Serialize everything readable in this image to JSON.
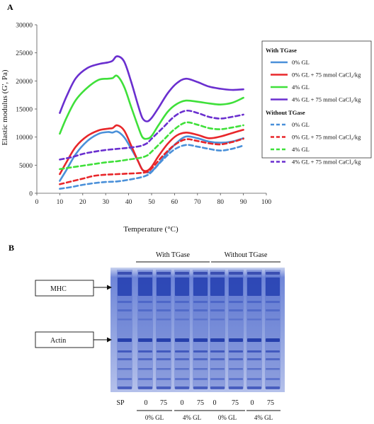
{
  "panel_a_label": "A",
  "panel_b_label": "B",
  "chart_data": {
    "type": "line",
    "xlabel": "Temperature (°C)",
    "ylabel": "Elastic modulus (G', Pa)",
    "xlim": [
      0,
      100
    ],
    "ylim": [
      0,
      30000
    ],
    "x_ticks": [
      "0",
      "10",
      "20",
      "30",
      "40",
      "50",
      "60",
      "70",
      "80",
      "90",
      "100"
    ],
    "y_ticks": [
      "0",
      "5000",
      "10000",
      "15000",
      "20000",
      "25000",
      "30000"
    ],
    "grid": false,
    "legend_position": "right",
    "legend_groups": [
      "With TGase",
      "Without TGase"
    ],
    "series": [
      {
        "name": "0% GL",
        "group": "With TGase",
        "color": "#4a90d9",
        "dash": "solid",
        "points": [
          [
            10,
            2200
          ],
          [
            13,
            4200
          ],
          [
            17,
            7000
          ],
          [
            22,
            9300
          ],
          [
            27,
            10600
          ],
          [
            31,
            10900
          ],
          [
            33,
            10800
          ],
          [
            35,
            11000
          ],
          [
            38,
            10000
          ],
          [
            41,
            8000
          ],
          [
            44,
            5800
          ],
          [
            46,
            4200
          ],
          [
            48,
            3700
          ],
          [
            50,
            3900
          ],
          [
            53,
            5200
          ],
          [
            57,
            7300
          ],
          [
            61,
            9000
          ],
          [
            65,
            10100
          ],
          [
            70,
            9800
          ],
          [
            75,
            9200
          ],
          [
            80,
            9000
          ],
          [
            85,
            9200
          ],
          [
            90,
            9800
          ]
        ]
      },
      {
        "name": "0% GL + 75 mmol CaCl₂/kg",
        "group": "With TGase",
        "color": "#e8262a",
        "dash": "solid",
        "points": [
          [
            10,
            3400
          ],
          [
            13,
            5600
          ],
          [
            17,
            8300
          ],
          [
            22,
            10200
          ],
          [
            27,
            11200
          ],
          [
            31,
            11500
          ],
          [
            33,
            11600
          ],
          [
            35,
            12100
          ],
          [
            38,
            11200
          ],
          [
            41,
            8600
          ],
          [
            44,
            5800
          ],
          [
            46,
            4200
          ],
          [
            48,
            4000
          ],
          [
            50,
            4700
          ],
          [
            53,
            6600
          ],
          [
            57,
            8800
          ],
          [
            61,
            10300
          ],
          [
            65,
            10800
          ],
          [
            70,
            10400
          ],
          [
            75,
            9800
          ],
          [
            80,
            10100
          ],
          [
            85,
            10700
          ],
          [
            90,
            11300
          ]
        ]
      },
      {
        "name": "4% GL",
        "group": "With TGase",
        "color": "#3fe03a",
        "dash": "solid",
        "points": [
          [
            10,
            10600
          ],
          [
            13,
            13500
          ],
          [
            17,
            16600
          ],
          [
            22,
            18800
          ],
          [
            27,
            20200
          ],
          [
            31,
            20400
          ],
          [
            33,
            20500
          ],
          [
            35,
            20900
          ],
          [
            38,
            19000
          ],
          [
            41,
            15500
          ],
          [
            44,
            12000
          ],
          [
            46,
            10000
          ],
          [
            48,
            9700
          ],
          [
            50,
            10200
          ],
          [
            53,
            12100
          ],
          [
            57,
            14500
          ],
          [
            61,
            15900
          ],
          [
            65,
            16500
          ],
          [
            70,
            16300
          ],
          [
            75,
            16000
          ],
          [
            80,
            15800
          ],
          [
            85,
            16100
          ],
          [
            90,
            17000
          ]
        ]
      },
      {
        "name": "4% GL + 75 mmol CaCl₂/kg",
        "group": "With TGase",
        "color": "#6a2fcf",
        "dash": "solid",
        "points": [
          [
            10,
            14300
          ],
          [
            13,
            17300
          ],
          [
            17,
            20500
          ],
          [
            22,
            22300
          ],
          [
            27,
            23000
          ],
          [
            31,
            23300
          ],
          [
            33,
            23600
          ],
          [
            35,
            24400
          ],
          [
            38,
            23500
          ],
          [
            41,
            20000
          ],
          [
            44,
            15800
          ],
          [
            46,
            13400
          ],
          [
            48,
            12800
          ],
          [
            50,
            13400
          ],
          [
            53,
            15200
          ],
          [
            57,
            17800
          ],
          [
            61,
            19600
          ],
          [
            65,
            20400
          ],
          [
            70,
            19800
          ],
          [
            75,
            19000
          ],
          [
            80,
            18600
          ],
          [
            85,
            18400
          ],
          [
            90,
            18500
          ]
        ]
      },
      {
        "name": "0% GL",
        "group": "Without TGase",
        "color": "#4a90d9",
        "dash": "dashed",
        "points": [
          [
            10,
            800
          ],
          [
            15,
            1100
          ],
          [
            20,
            1500
          ],
          [
            25,
            1800
          ],
          [
            30,
            2000
          ],
          [
            35,
            2100
          ],
          [
            40,
            2400
          ],
          [
            45,
            2800
          ],
          [
            48,
            3200
          ],
          [
            50,
            3800
          ],
          [
            55,
            6000
          ],
          [
            60,
            7800
          ],
          [
            65,
            8600
          ],
          [
            70,
            8300
          ],
          [
            75,
            7900
          ],
          [
            80,
            7600
          ],
          [
            85,
            7900
          ],
          [
            90,
            8500
          ]
        ]
      },
      {
        "name": "0% GL + 75 mmol CaCl₂/kg",
        "group": "Without TGase",
        "color": "#e8262a",
        "dash": "dashed",
        "points": [
          [
            10,
            1600
          ],
          [
            15,
            2100
          ],
          [
            20,
            2600
          ],
          [
            25,
            3100
          ],
          [
            30,
            3300
          ],
          [
            35,
            3400
          ],
          [
            40,
            3500
          ],
          [
            45,
            3600
          ],
          [
            48,
            3800
          ],
          [
            50,
            4400
          ],
          [
            55,
            6700
          ],
          [
            60,
            8600
          ],
          [
            65,
            9600
          ],
          [
            70,
            9300
          ],
          [
            75,
            8900
          ],
          [
            80,
            8700
          ],
          [
            85,
            9100
          ],
          [
            90,
            9700
          ]
        ]
      },
      {
        "name": "4% GL",
        "group": "Without TGase",
        "color": "#3fe03a",
        "dash": "dashed",
        "points": [
          [
            10,
            4300
          ],
          [
            15,
            4600
          ],
          [
            20,
            4900
          ],
          [
            25,
            5200
          ],
          [
            30,
            5500
          ],
          [
            35,
            5700
          ],
          [
            40,
            6000
          ],
          [
            45,
            6300
          ],
          [
            48,
            6700
          ],
          [
            50,
            7400
          ],
          [
            55,
            9400
          ],
          [
            60,
            11400
          ],
          [
            65,
            12600
          ],
          [
            70,
            12200
          ],
          [
            75,
            11600
          ],
          [
            80,
            11400
          ],
          [
            85,
            11700
          ],
          [
            90,
            12100
          ]
        ]
      },
      {
        "name": "4% GL + 75 mmol CaCl₂/kg",
        "group": "Without TGase",
        "color": "#6a2fcf",
        "dash": "dashed",
        "points": [
          [
            10,
            6000
          ],
          [
            15,
            6400
          ],
          [
            20,
            7000
          ],
          [
            25,
            7400
          ],
          [
            30,
            7700
          ],
          [
            35,
            7900
          ],
          [
            40,
            8100
          ],
          [
            45,
            8400
          ],
          [
            48,
            8900
          ],
          [
            50,
            9700
          ],
          [
            55,
            11700
          ],
          [
            60,
            13700
          ],
          [
            65,
            14700
          ],
          [
            70,
            14300
          ],
          [
            75,
            13600
          ],
          [
            80,
            13300
          ],
          [
            85,
            13600
          ],
          [
            90,
            14000
          ]
        ]
      }
    ]
  },
  "gel": {
    "header_with": "With TGase",
    "header_without": "Without TGase",
    "marker_mhc": "MHC",
    "marker_actin": "Actin",
    "lane_labels": [
      "SP",
      "0",
      "75",
      "0",
      "75",
      "0",
      "75",
      "0",
      "75"
    ],
    "group_labels": [
      "0% GL",
      "4% GL",
      "0% GL",
      "4% GL"
    ]
  }
}
